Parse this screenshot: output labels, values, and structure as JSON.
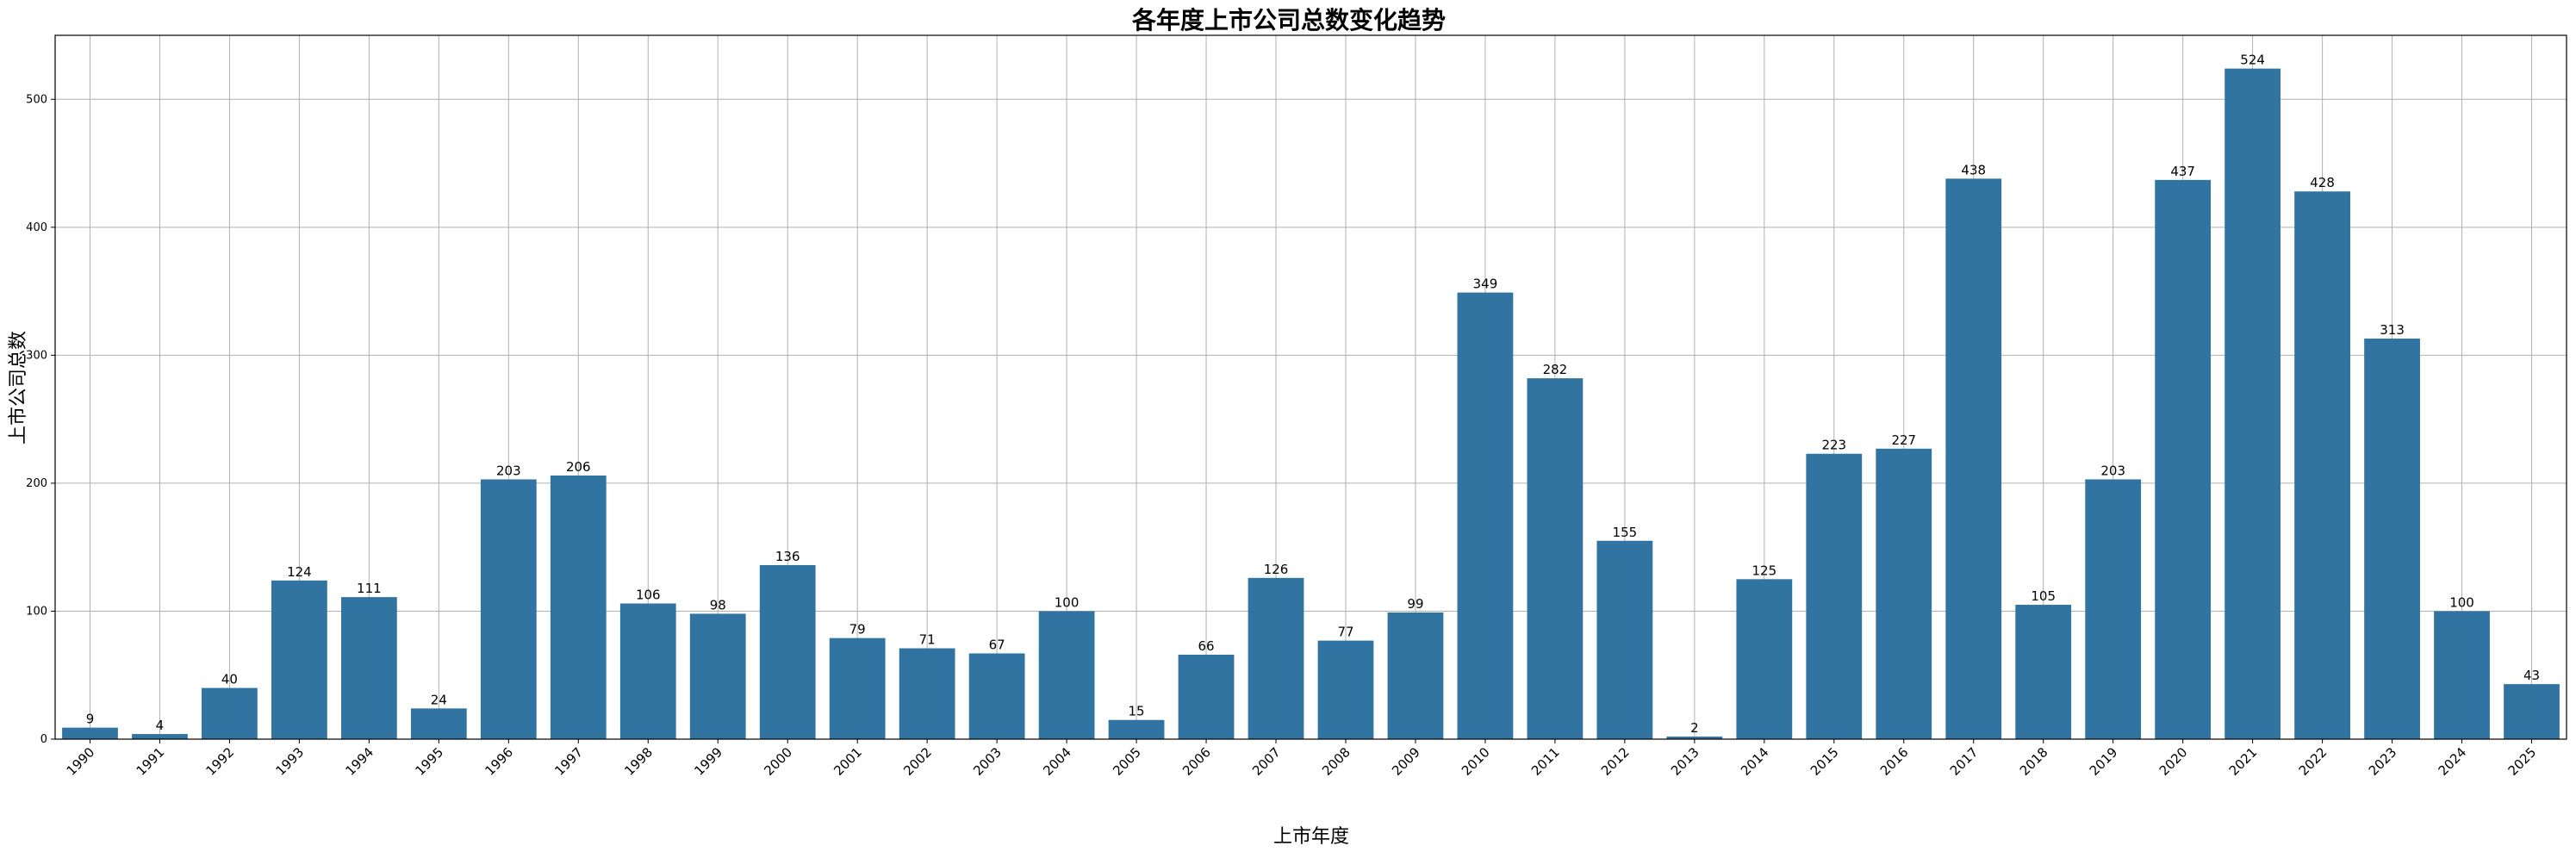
{
  "chart_data": {
    "type": "bar",
    "title": "各年度上市公司总数变化趋势",
    "xlabel": "上市年度",
    "ylabel": "上市公司总数",
    "categories": [
      "1990",
      "1991",
      "1992",
      "1993",
      "1994",
      "1995",
      "1996",
      "1997",
      "1998",
      "1999",
      "2000",
      "2001",
      "2002",
      "2003",
      "2004",
      "2005",
      "2006",
      "2007",
      "2008",
      "2009",
      "2010",
      "2011",
      "2012",
      "2013",
      "2014",
      "2015",
      "2016",
      "2017",
      "2018",
      "2019",
      "2020",
      "2021",
      "2022",
      "2023",
      "2024",
      "2025"
    ],
    "values": [
      9,
      4,
      40,
      124,
      111,
      24,
      203,
      206,
      106,
      98,
      136,
      79,
      71,
      67,
      100,
      15,
      66,
      126,
      77,
      99,
      349,
      282,
      155,
      2,
      125,
      223,
      227,
      438,
      105,
      203,
      437,
      524,
      428,
      313,
      100,
      43
    ],
    "ylim": [
      0,
      550
    ],
    "yticks": [
      0,
      100,
      200,
      300,
      400,
      500
    ],
    "bar_color": "#3274a1",
    "grid": true,
    "data_labels": true
  }
}
